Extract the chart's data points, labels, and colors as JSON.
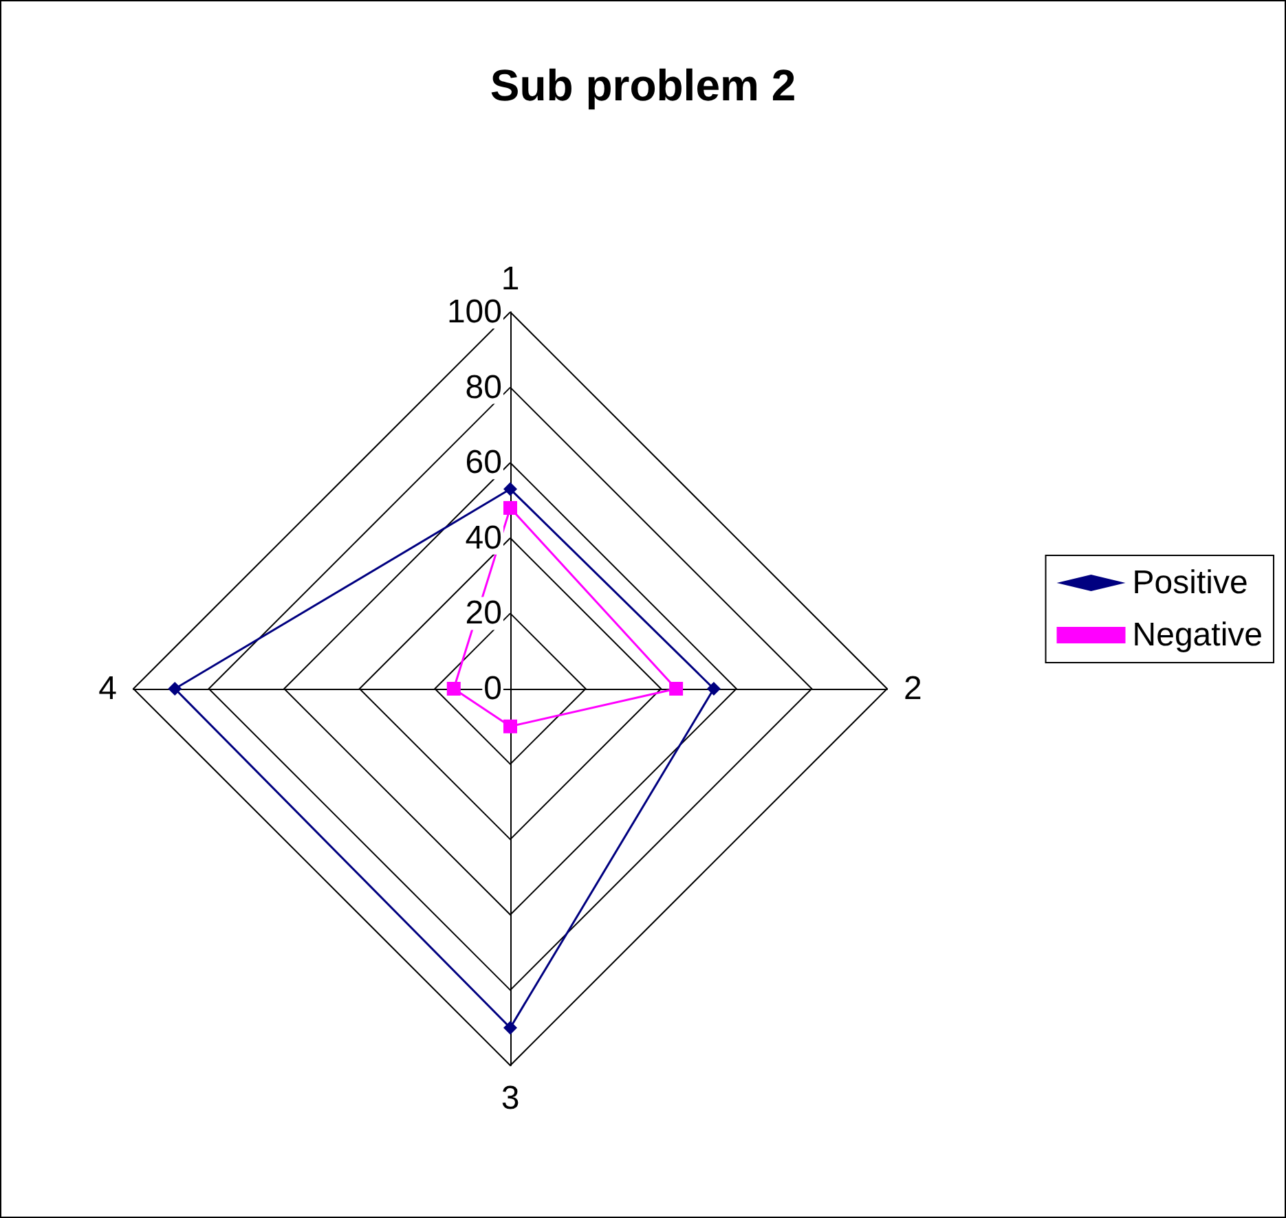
{
  "chart_data": {
    "type": "radar",
    "title": "Sub problem 2",
    "categories": [
      "1",
      "2",
      "3",
      "4"
    ],
    "series": [
      {
        "name": "Positive",
        "color": "#000080",
        "marker": "diamond",
        "values": [
          53,
          54,
          90,
          89
        ]
      },
      {
        "name": "Negative",
        "color": "#ff00ff",
        "marker": "square",
        "values": [
          48,
          44,
          10,
          15
        ]
      }
    ],
    "ylim": [
      0,
      100
    ],
    "yticks": [
      0,
      20,
      40,
      60,
      80,
      100
    ],
    "grid": true,
    "legend": "right"
  }
}
